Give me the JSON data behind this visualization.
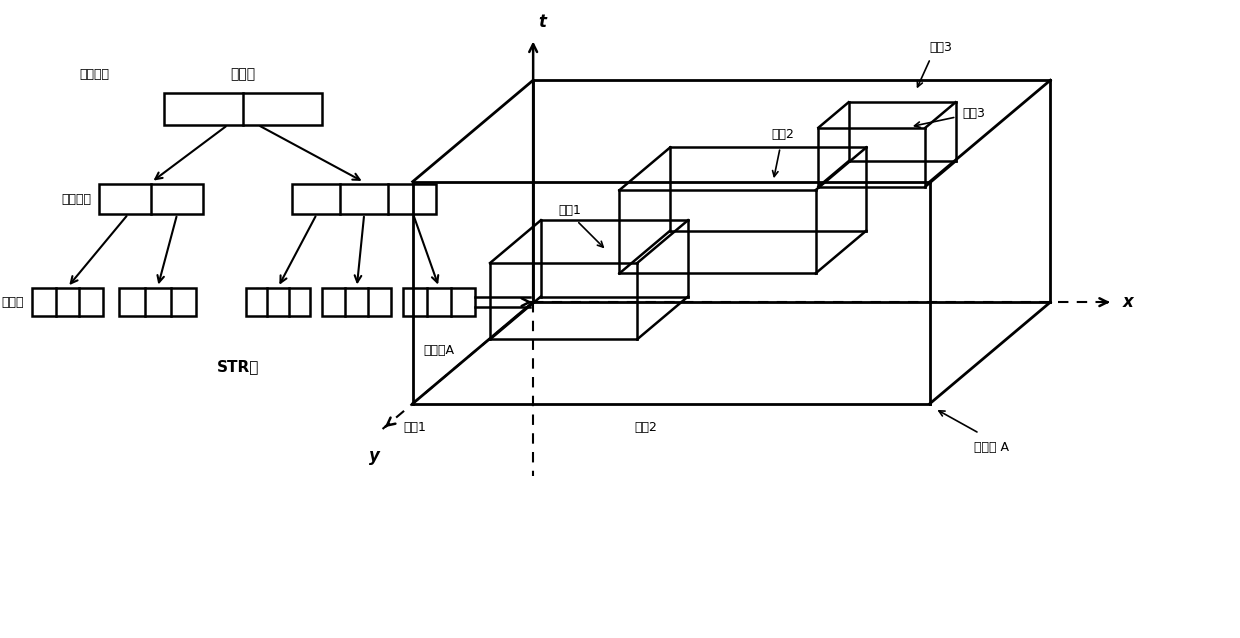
{
  "bg_color": "#ffffff",
  "line_color": "#000000",
  "fig_width": 12.4,
  "fig_height": 6.38,
  "dpi": 100,
  "labels": {
    "root": "根节点",
    "non_leaf1": "非叶节点",
    "non_leaf2": "非叶节点",
    "leaf": "叶节点",
    "str_tree": "STR树",
    "leaf_node_a_tree": "叶节点A",
    "leaf_node_a_3d": "叶节点 A",
    "t_axis": "t",
    "x_axis": "x",
    "y_axis": "y",
    "strip1": "条日1",
    "strip2": "条日2",
    "strip3": "条日3",
    "seg1": "线段1",
    "seg2": "线段2",
    "seg3": "线段3"
  }
}
